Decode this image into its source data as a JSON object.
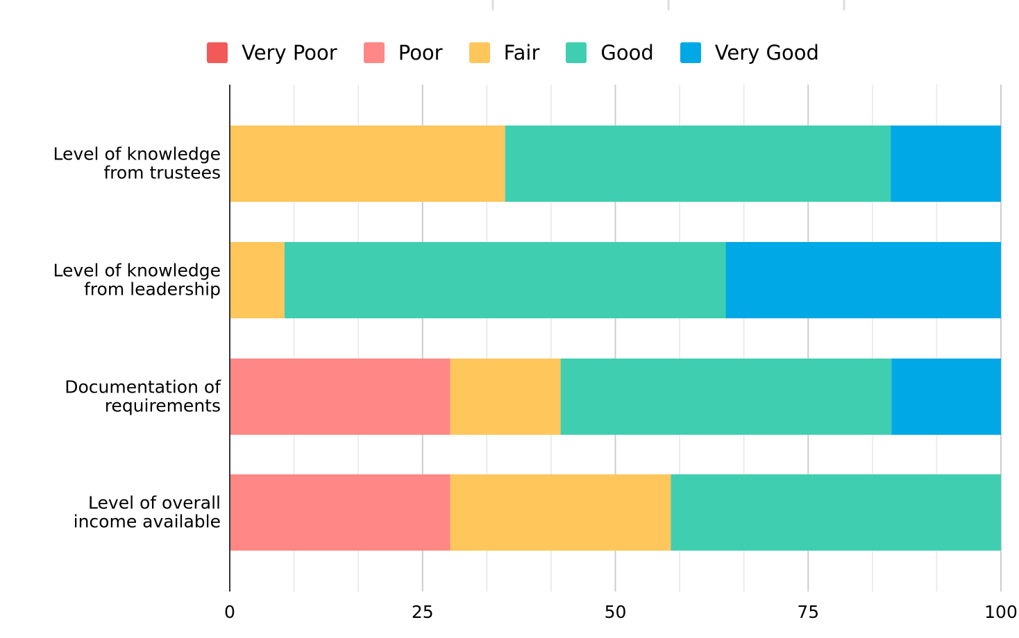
{
  "chart_data": {
    "type": "bar",
    "orientation": "horizontal",
    "stacked": true,
    "title": "",
    "xlabel": "",
    "ylabel": "",
    "xlim": [
      0,
      100
    ],
    "xticks": [
      0,
      25,
      50,
      75,
      100
    ],
    "grid": true,
    "legend_position": "top-center",
    "categories": [
      [
        "Level of knowledge",
        "from trustees"
      ],
      [
        "Level of knowledge",
        "from leadership"
      ],
      [
        "Documentation of",
        "requirements"
      ],
      [
        "Level of overall",
        "income available"
      ]
    ],
    "series": [
      {
        "name": "Very Poor",
        "color": "#f25a5a",
        "values": [
          0,
          0,
          0,
          0
        ]
      },
      {
        "name": "Poor",
        "color": "#ff8785",
        "values": [
          0,
          0,
          28.6,
          28.6
        ]
      },
      {
        "name": "Fair",
        "color": "#ffc65c",
        "values": [
          35.7,
          7.1,
          14.3,
          28.6
        ]
      },
      {
        "name": "Good",
        "color": "#3fcfb0",
        "values": [
          50.0,
          57.2,
          42.9,
          42.8
        ]
      },
      {
        "name": "Very Good",
        "color": "#00a8e6",
        "values": [
          14.3,
          35.7,
          14.2,
          0
        ]
      }
    ]
  }
}
